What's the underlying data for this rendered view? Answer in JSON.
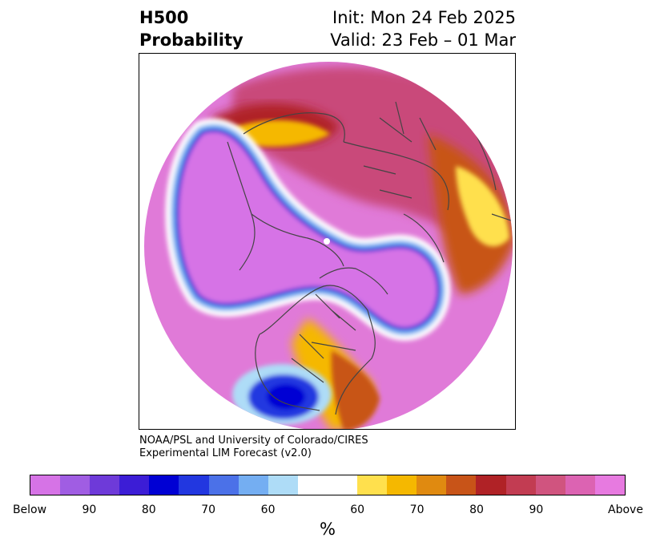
{
  "title": {
    "left_line1": "H500",
    "left_line2": "Probability",
    "right_line1": "Init: Mon 24 Feb 2025",
    "right_line2": "Valid: 23 Feb – 01 Mar"
  },
  "credit": {
    "line1": "NOAA/PSL and University of Colorado/CIRES",
    "line2": "Experimental LIM Forecast (v2.0)"
  },
  "colorbar": {
    "colors": [
      "#d673e6",
      "#a05de3",
      "#6e3ad9",
      "#3c1dd6",
      "#0000d4",
      "#2237e0",
      "#4b71e8",
      "#74aef2",
      "#aedcf7",
      "#ffffff",
      "#ffe04d",
      "#f5b800",
      "#e08a10",
      "#c85418",
      "#b02226",
      "#c23c52",
      "#d0547f",
      "#dc63b2",
      "#e77ae0"
    ],
    "tick_labels": [
      "Below",
      "90",
      "80",
      "70",
      "60",
      "60",
      "70",
      "80",
      "90",
      "Above"
    ],
    "unit": "%"
  },
  "map": {
    "field_colors": {
      "above": "#e07ad8",
      "above_strong": "#c9487a",
      "above_mid": "#b02226",
      "warm_edge": "#f5b800",
      "yellow": "#ffe04d",
      "white": "#ffffff",
      "light_blue": "#aedcf7",
      "blue": "#2237e0",
      "deep_blue": "#0000d4",
      "below": "#d673e6",
      "border": "#444444"
    }
  }
}
